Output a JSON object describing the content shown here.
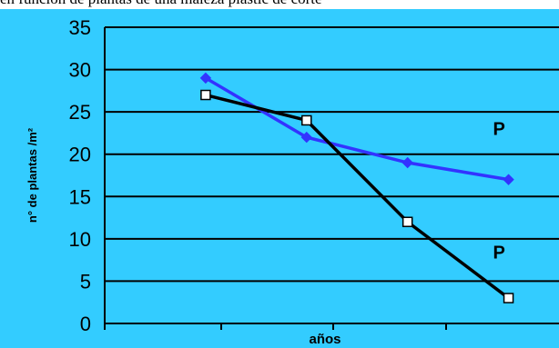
{
  "top_text": "en función de plantas de una maleza plastic de corte",
  "colors": {
    "plot_background": "#33ccff",
    "gridline": "#000000",
    "series_blue": "#3333ff",
    "series_black": "#000000",
    "frame": "#33ccff"
  },
  "chart_data": {
    "type": "line",
    "title": "",
    "xlabel": "años",
    "ylabel": "n° de plantas /m²",
    "x": [
      1,
      2,
      3,
      4
    ],
    "xlim": [
      0,
      4.5
    ],
    "ylim": [
      0,
      35
    ],
    "yticks": [
      "0",
      "5",
      "10",
      "15",
      "20",
      "25",
      "30",
      "35"
    ],
    "grid": true,
    "series": [
      {
        "name": "",
        "color": "#3333ff",
        "marker": "diamond",
        "values": [
          29,
          22,
          19,
          17
        ]
      },
      {
        "name": "",
        "color": "#000000",
        "marker": "square",
        "values": [
          27,
          24,
          12,
          3
        ]
      }
    ],
    "annotations": [
      {
        "text": "P",
        "x": 4,
        "y": 22.3
      },
      {
        "text": "P",
        "x": 4,
        "y": 7.7
      }
    ]
  }
}
